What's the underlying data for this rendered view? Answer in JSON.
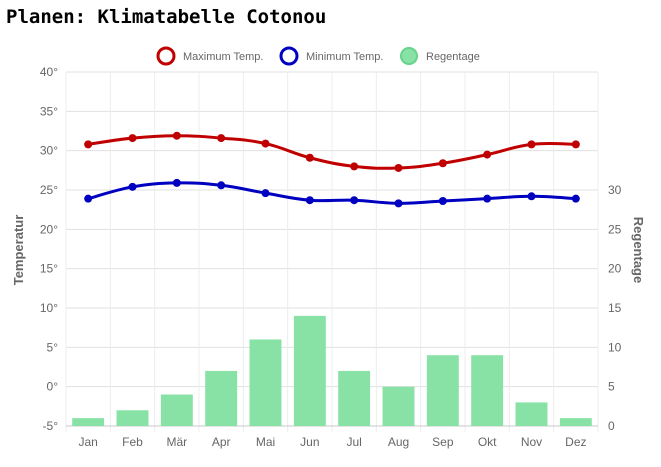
{
  "page": {
    "title": "Planen: Klimatabelle Cotonou"
  },
  "chart_data": {
    "type": "line+bar",
    "categories": [
      "Jan",
      "Feb",
      "Mär",
      "Apr",
      "Mai",
      "Jun",
      "Jul",
      "Aug",
      "Sep",
      "Okt",
      "Nov",
      "Dez"
    ],
    "series": [
      {
        "name": "Maximum Temp.",
        "type": "line",
        "axis": "left",
        "color": "#c00000",
        "values": [
          30.8,
          31.6,
          31.9,
          31.6,
          30.9,
          29.1,
          28.0,
          27.8,
          28.4,
          29.5,
          30.8,
          30.8
        ]
      },
      {
        "name": "Minimum Temp.",
        "type": "line",
        "axis": "left",
        "color": "#0000c0",
        "values": [
          23.9,
          25.4,
          25.9,
          25.6,
          24.6,
          23.7,
          23.7,
          23.3,
          23.6,
          23.9,
          24.2,
          23.9
        ]
      },
      {
        "name": "Regentage",
        "type": "bar",
        "axis": "right",
        "color": "#88e2a6",
        "values": [
          1,
          2,
          4,
          7,
          11,
          14,
          7,
          5,
          9,
          9,
          3,
          1
        ]
      }
    ],
    "left_axis": {
      "label": "Temperatur",
      "ticks": [
        "40°",
        "35°",
        "30°",
        "25°",
        "20°",
        "15°",
        "10°",
        "5°",
        "0°",
        "-5°"
      ],
      "min": -5,
      "max": 40
    },
    "right_axis": {
      "label": "Regentage",
      "ticks": [
        "30",
        "25",
        "20",
        "15",
        "10",
        "5",
        "0"
      ],
      "min": 0,
      "max": 30
    },
    "grid": true,
    "legend_position": "top"
  }
}
